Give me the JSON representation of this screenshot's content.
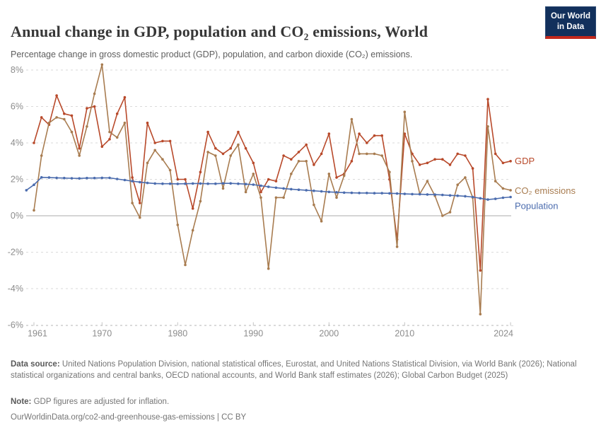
{
  "header": {
    "title": "Annual change in GDP, population and CO₂ emissions, World",
    "subtitle": "Percentage change in gross domestic product (GDP), population, and carbon dioxide (CO₂) emissions.",
    "logo": {
      "line1": "Our World",
      "line2": "in Data",
      "bg_color": "#12305c",
      "bar_color": "#c2281c"
    }
  },
  "chart_data": {
    "type": "line",
    "title": "Annual change in GDP, population and CO₂ emissions, World",
    "xlabel": "",
    "ylabel": "",
    "ylim": [
      -6,
      8
    ],
    "xlim": [
      1960,
      2025
    ],
    "grid": "horizontal-dashed",
    "legend_position": "right-end-labels",
    "yticks": [
      8,
      6,
      4,
      2,
      0,
      -2,
      -4,
      -6
    ],
    "ytick_suffix": "%",
    "xticks": [
      1961,
      1970,
      1980,
      1990,
      2000,
      2010,
      2024
    ],
    "x": [
      1960,
      1961,
      1962,
      1963,
      1964,
      1965,
      1966,
      1967,
      1968,
      1969,
      1970,
      1971,
      1972,
      1973,
      1974,
      1975,
      1976,
      1977,
      1978,
      1979,
      1980,
      1981,
      1982,
      1983,
      1984,
      1985,
      1986,
      1987,
      1988,
      1989,
      1990,
      1991,
      1992,
      1993,
      1994,
      1995,
      1996,
      1997,
      1998,
      1999,
      2000,
      2001,
      2002,
      2003,
      2004,
      2005,
      2006,
      2007,
      2008,
      2009,
      2010,
      2011,
      2012,
      2013,
      2014,
      2015,
      2016,
      2017,
      2018,
      2019,
      2020,
      2021,
      2022,
      2023,
      2024
    ],
    "series": [
      {
        "name": "GDP",
        "color": "#b8492a",
        "values": [
          null,
          4.0,
          5.4,
          5.0,
          6.6,
          5.6,
          5.5,
          3.7,
          5.9,
          6.0,
          3.8,
          4.2,
          5.6,
          6.5,
          2.1,
          0.7,
          5.1,
          4.0,
          4.1,
          4.1,
          2.0,
          2.0,
          0.4,
          2.4,
          4.6,
          3.7,
          3.4,
          3.7,
          4.6,
          3.7,
          2.9,
          1.3,
          2.0,
          1.9,
          3.3,
          3.1,
          3.5,
          3.9,
          2.8,
          3.4,
          4.5,
          2.1,
          2.3,
          3.0,
          4.5,
          4.0,
          4.4,
          4.4,
          2.0,
          -1.3,
          4.5,
          3.4,
          2.8,
          2.9,
          3.1,
          3.1,
          2.8,
          3.4,
          3.3,
          2.6,
          -3.0,
          6.4,
          3.4,
          2.9,
          3.0
        ]
      },
      {
        "name": "CO₂ emissions",
        "color": "#a87c50",
        "values": [
          null,
          0.3,
          3.3,
          5.1,
          5.4,
          5.3,
          4.6,
          3.3,
          4.9,
          6.7,
          8.3,
          4.6,
          4.3,
          5.1,
          0.7,
          -0.1,
          2.9,
          3.6,
          3.1,
          2.5,
          -0.5,
          -2.7,
          -0.8,
          0.8,
          3.5,
          3.3,
          1.5,
          3.3,
          3.9,
          1.3,
          2.3,
          1.0,
          -2.9,
          1.0,
          1.0,
          2.3,
          3.0,
          3.0,
          0.6,
          -0.3,
          2.3,
          1.0,
          2.2,
          5.3,
          3.4,
          3.4,
          3.4,
          3.3,
          2.4,
          -1.7,
          5.7,
          3.0,
          1.2,
          1.9,
          1.1,
          0.0,
          0.2,
          1.7,
          2.1,
          1.0,
          -5.4,
          4.9,
          1.9,
          1.5,
          1.4
        ]
      },
      {
        "name": "Population",
        "color": "#4b6cae",
        "values": [
          1.4,
          1.7,
          2.11,
          2.1,
          2.08,
          2.07,
          2.06,
          2.05,
          2.07,
          2.07,
          2.08,
          2.08,
          2.02,
          1.96,
          1.9,
          1.85,
          1.8,
          1.77,
          1.76,
          1.76,
          1.75,
          1.76,
          1.77,
          1.77,
          1.76,
          1.76,
          1.78,
          1.78,
          1.76,
          1.74,
          1.71,
          1.65,
          1.59,
          1.54,
          1.5,
          1.46,
          1.43,
          1.4,
          1.37,
          1.34,
          1.31,
          1.29,
          1.27,
          1.26,
          1.25,
          1.25,
          1.24,
          1.24,
          1.23,
          1.22,
          1.2,
          1.19,
          1.18,
          1.17,
          1.16,
          1.14,
          1.12,
          1.1,
          1.07,
          1.03,
          0.96,
          0.89,
          0.93,
          0.99,
          1.03
        ]
      }
    ],
    "colors": {
      "gridline": "#dadada",
      "zero_line": "#ababab",
      "tick_label": "#8c8c8c",
      "axis_tick": "#c4c4c4"
    }
  },
  "footer": {
    "datasource_label": "Data source:",
    "datasource_text": " United Nations Population Division, national statistical offices, Eurostat, and United Nations Statistical Division, via World Bank (2026); National statistical organizations and central banks, OECD national accounts, and World Bank staff estimates (2026); Global Carbon Budget (2025)",
    "note_label": "Note:",
    "note_text": " GDP figures are adjusted for inflation.",
    "link": "OurWorldinData.org/co2-and-greenhouse-gas-emissions | CC BY"
  }
}
